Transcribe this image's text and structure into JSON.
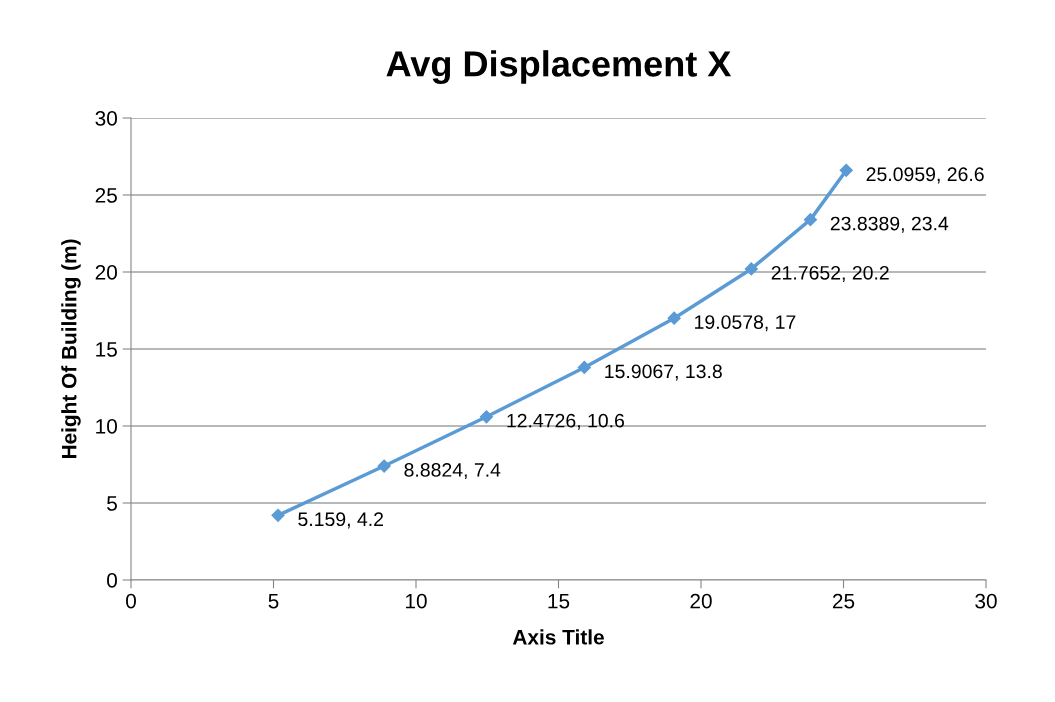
{
  "chart_data": {
    "type": "line",
    "title": "Avg Displacement X",
    "xlabel": "Axis Title",
    "ylabel": "Height Of Building (m)",
    "series": [
      {
        "color": "#5b9bd5",
        "x": [
          5.159,
          8.8824,
          12.4726,
          15.9067,
          19.0578,
          21.7652,
          23.8389,
          25.0959
        ],
        "values": [
          4.2,
          7.4,
          10.6,
          13.8,
          17,
          20.2,
          23.4,
          26.6
        ],
        "value_labels": [
          "5.159, 4.2",
          "8.8824, 7.4",
          "12.4726, 10.6",
          "15.9067, 13.8",
          "19.0578, 17",
          "21.7652, 20.2",
          "23.8389, 23.4",
          "25.0959, 26.6"
        ]
      }
    ],
    "xlim": [
      0,
      30
    ],
    "xticks": [
      0,
      5,
      10,
      15,
      20,
      25,
      30
    ],
    "ylim": [
      0,
      30
    ],
    "yticks": [
      0,
      5,
      10,
      15,
      20,
      25,
      30
    ],
    "grid": "y",
    "marker": "diamond",
    "line_style": "solid"
  }
}
